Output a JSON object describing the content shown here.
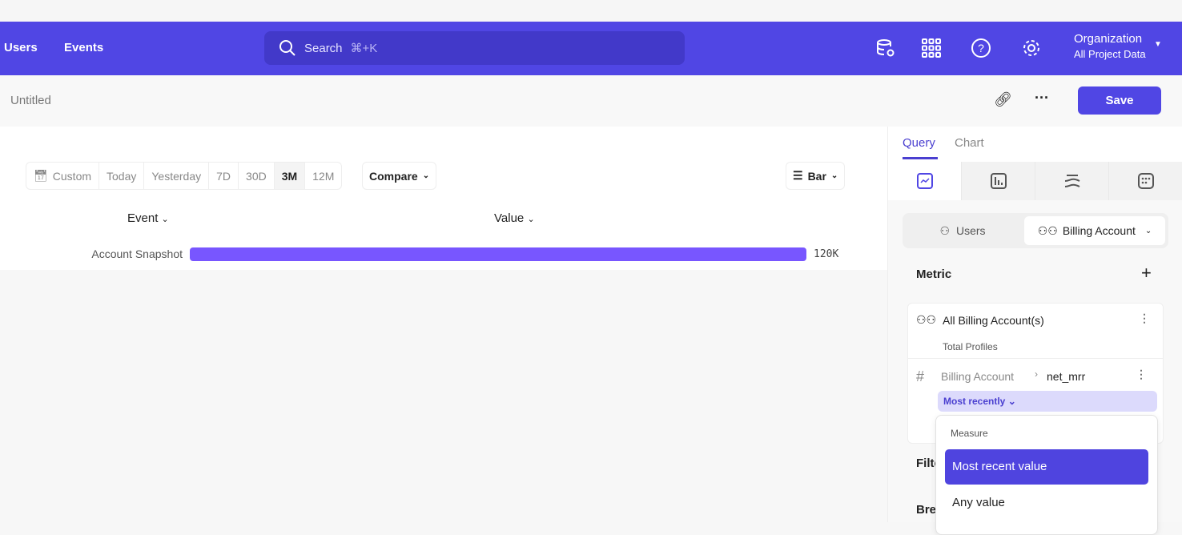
{
  "nav": {
    "users": "Users",
    "events": "Events"
  },
  "search": {
    "label": "Search",
    "shortcut": "⌘+K"
  },
  "org": {
    "title": "Organization",
    "subtitle": "All Project Data"
  },
  "report": {
    "title": "Untitled",
    "save": "Save"
  },
  "dates": [
    "Custom",
    "Today",
    "Yesterday",
    "7D",
    "30D",
    "3M",
    "12M"
  ],
  "selected_date": "3M",
  "compare": "Compare",
  "chart_type": "Bar",
  "table": {
    "col_event": "Event",
    "col_value": "Value"
  },
  "chart_data": {
    "type": "bar",
    "categories": [
      "Account Snapshot"
    ],
    "values": [
      120000
    ],
    "value_labels": [
      "120K"
    ],
    "color": "#7856ff"
  },
  "panel": {
    "tabs": [
      "Query",
      "Chart"
    ],
    "active_tab": "Query",
    "entity": {
      "users": "Users",
      "billing": "Billing Account"
    },
    "metric_title": "Metric",
    "metric": {
      "name": "All Billing Account(s)",
      "sub": "Total Profiles",
      "prop_entity": "Billing Account",
      "prop": "net_mrr",
      "agg": "Most recently"
    },
    "filter": "Filte",
    "breakdown": "Bre",
    "menu": {
      "header": "Measure",
      "options": [
        "Most recent value",
        "Any value"
      ]
    }
  },
  "colors": {
    "brand": "#5046e4",
    "bar": "#7856ff"
  }
}
